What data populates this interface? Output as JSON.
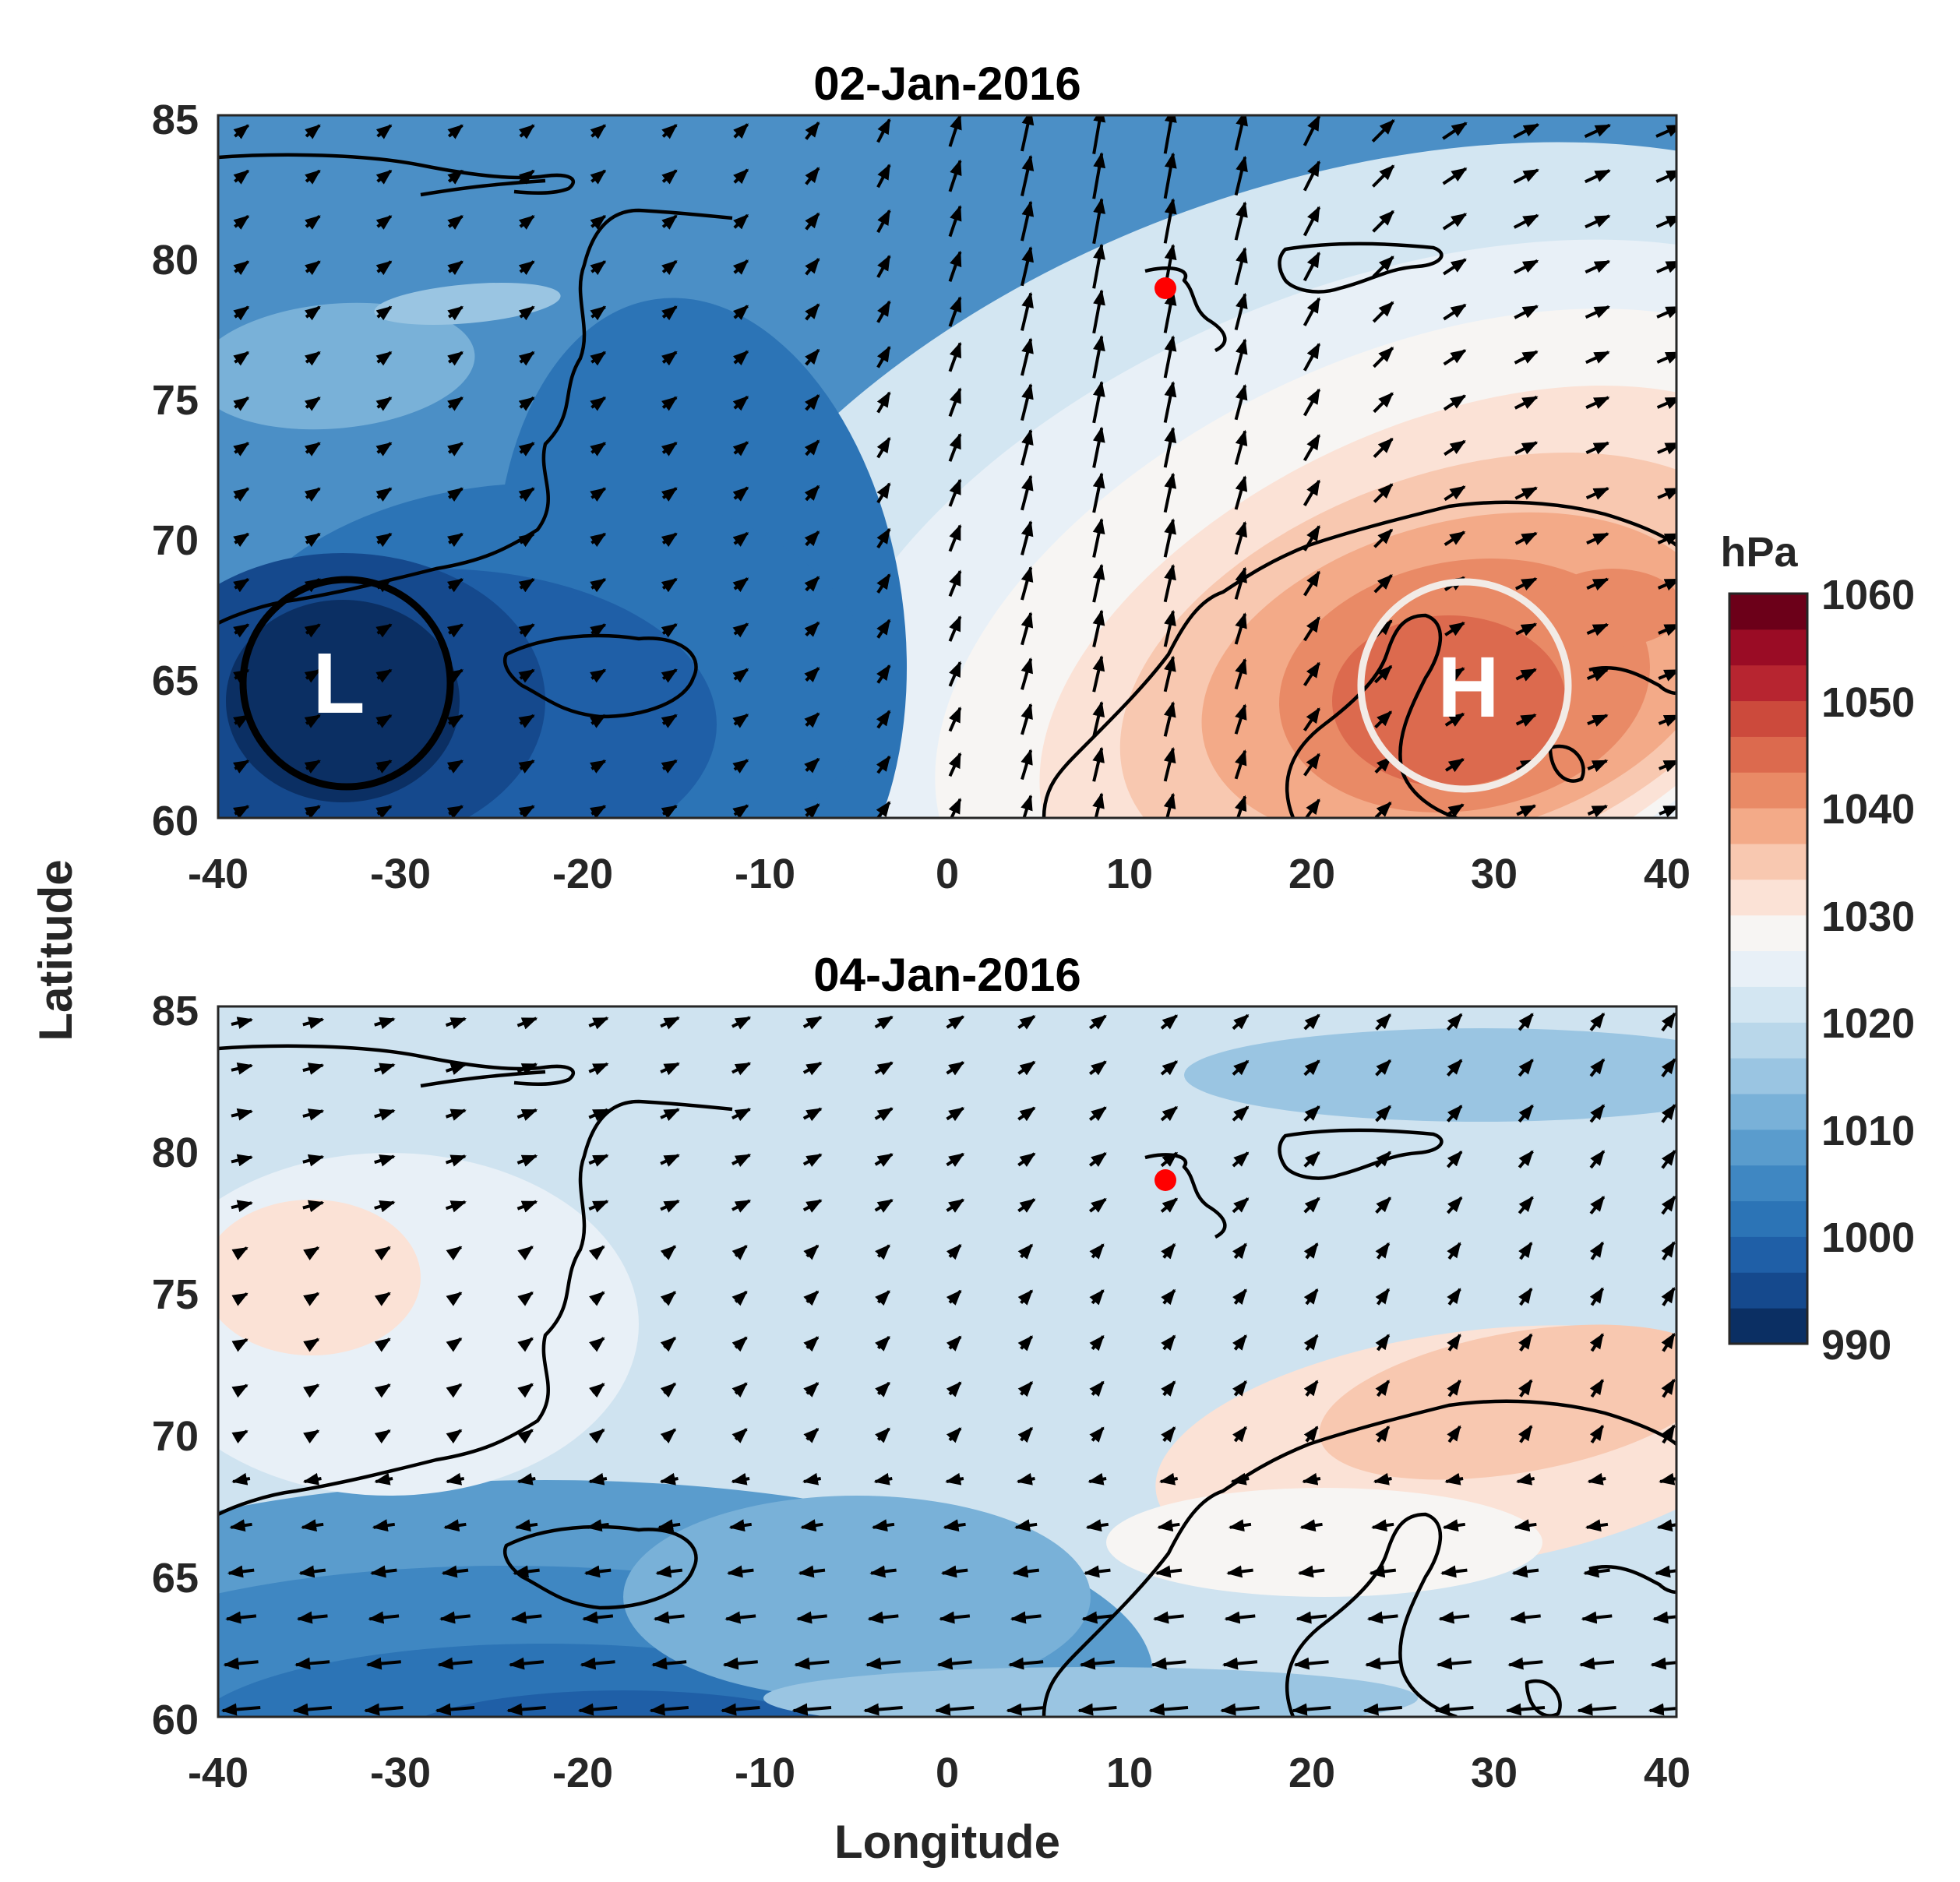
{
  "chart_data": [
    {
      "type": "heatmap",
      "title": "02-Jan-2016",
      "xlabel": "Longitude",
      "ylabel": "Latitude",
      "xlim": [
        -40,
        40
      ],
      "ylim": [
        60,
        85
      ],
      "xticks": [
        "-40",
        "-30",
        "-20",
        "-10",
        "0",
        "10",
        "20",
        "30",
        "40"
      ],
      "yticks": [
        "85",
        "80",
        "75",
        "70",
        "65",
        "60"
      ],
      "field": "sea level pressure with wind vectors",
      "pressure_centers": [
        {
          "label": "L",
          "lon": -33,
          "lat": 65,
          "ring_color": "#000000"
        },
        {
          "label": "H",
          "lon": 28,
          "lat": 65,
          "ring_color": "#f2ebe6"
        }
      ],
      "station_marker": {
        "lon": 12,
        "lat": 79,
        "color": "#ff0000"
      }
    },
    {
      "type": "heatmap",
      "title": "04-Jan-2016",
      "xlabel": "Longitude",
      "ylabel": "Latitude",
      "xlim": [
        -40,
        40
      ],
      "ylim": [
        60,
        85
      ],
      "xticks": [
        "-40",
        "-30",
        "-20",
        "-10",
        "0",
        "10",
        "20",
        "30",
        "40"
      ],
      "yticks": [
        "85",
        "80",
        "75",
        "70",
        "65",
        "60"
      ],
      "field": "sea level pressure with wind vectors",
      "station_marker": {
        "lon": 12,
        "lat": 79,
        "color": "#ff0000"
      }
    }
  ],
  "colorbar": {
    "unit": "hPa",
    "min": 990,
    "max": 1060,
    "tick_labels": [
      "1060",
      "1050",
      "1040",
      "1030",
      "1020",
      "1010",
      "1000",
      "990"
    ],
    "colors": [
      "#0b2f63",
      "#15498d",
      "#1f5fa7",
      "#2c74b6",
      "#3f87c2",
      "#5a9ccd",
      "#79b1d8",
      "#9ac5e2",
      "#b9d7ea",
      "#d3e6f2",
      "#e8f0f7",
      "#f7f5f3",
      "#fbe2d6",
      "#f8c8b0",
      "#f3aa88",
      "#e98a66",
      "#dc6a4e",
      "#cc4a3c",
      "#b72530",
      "#9a0c25",
      "#6c0019"
    ]
  },
  "axis_labels": {
    "x": "Longitude",
    "y": "Latitude"
  }
}
